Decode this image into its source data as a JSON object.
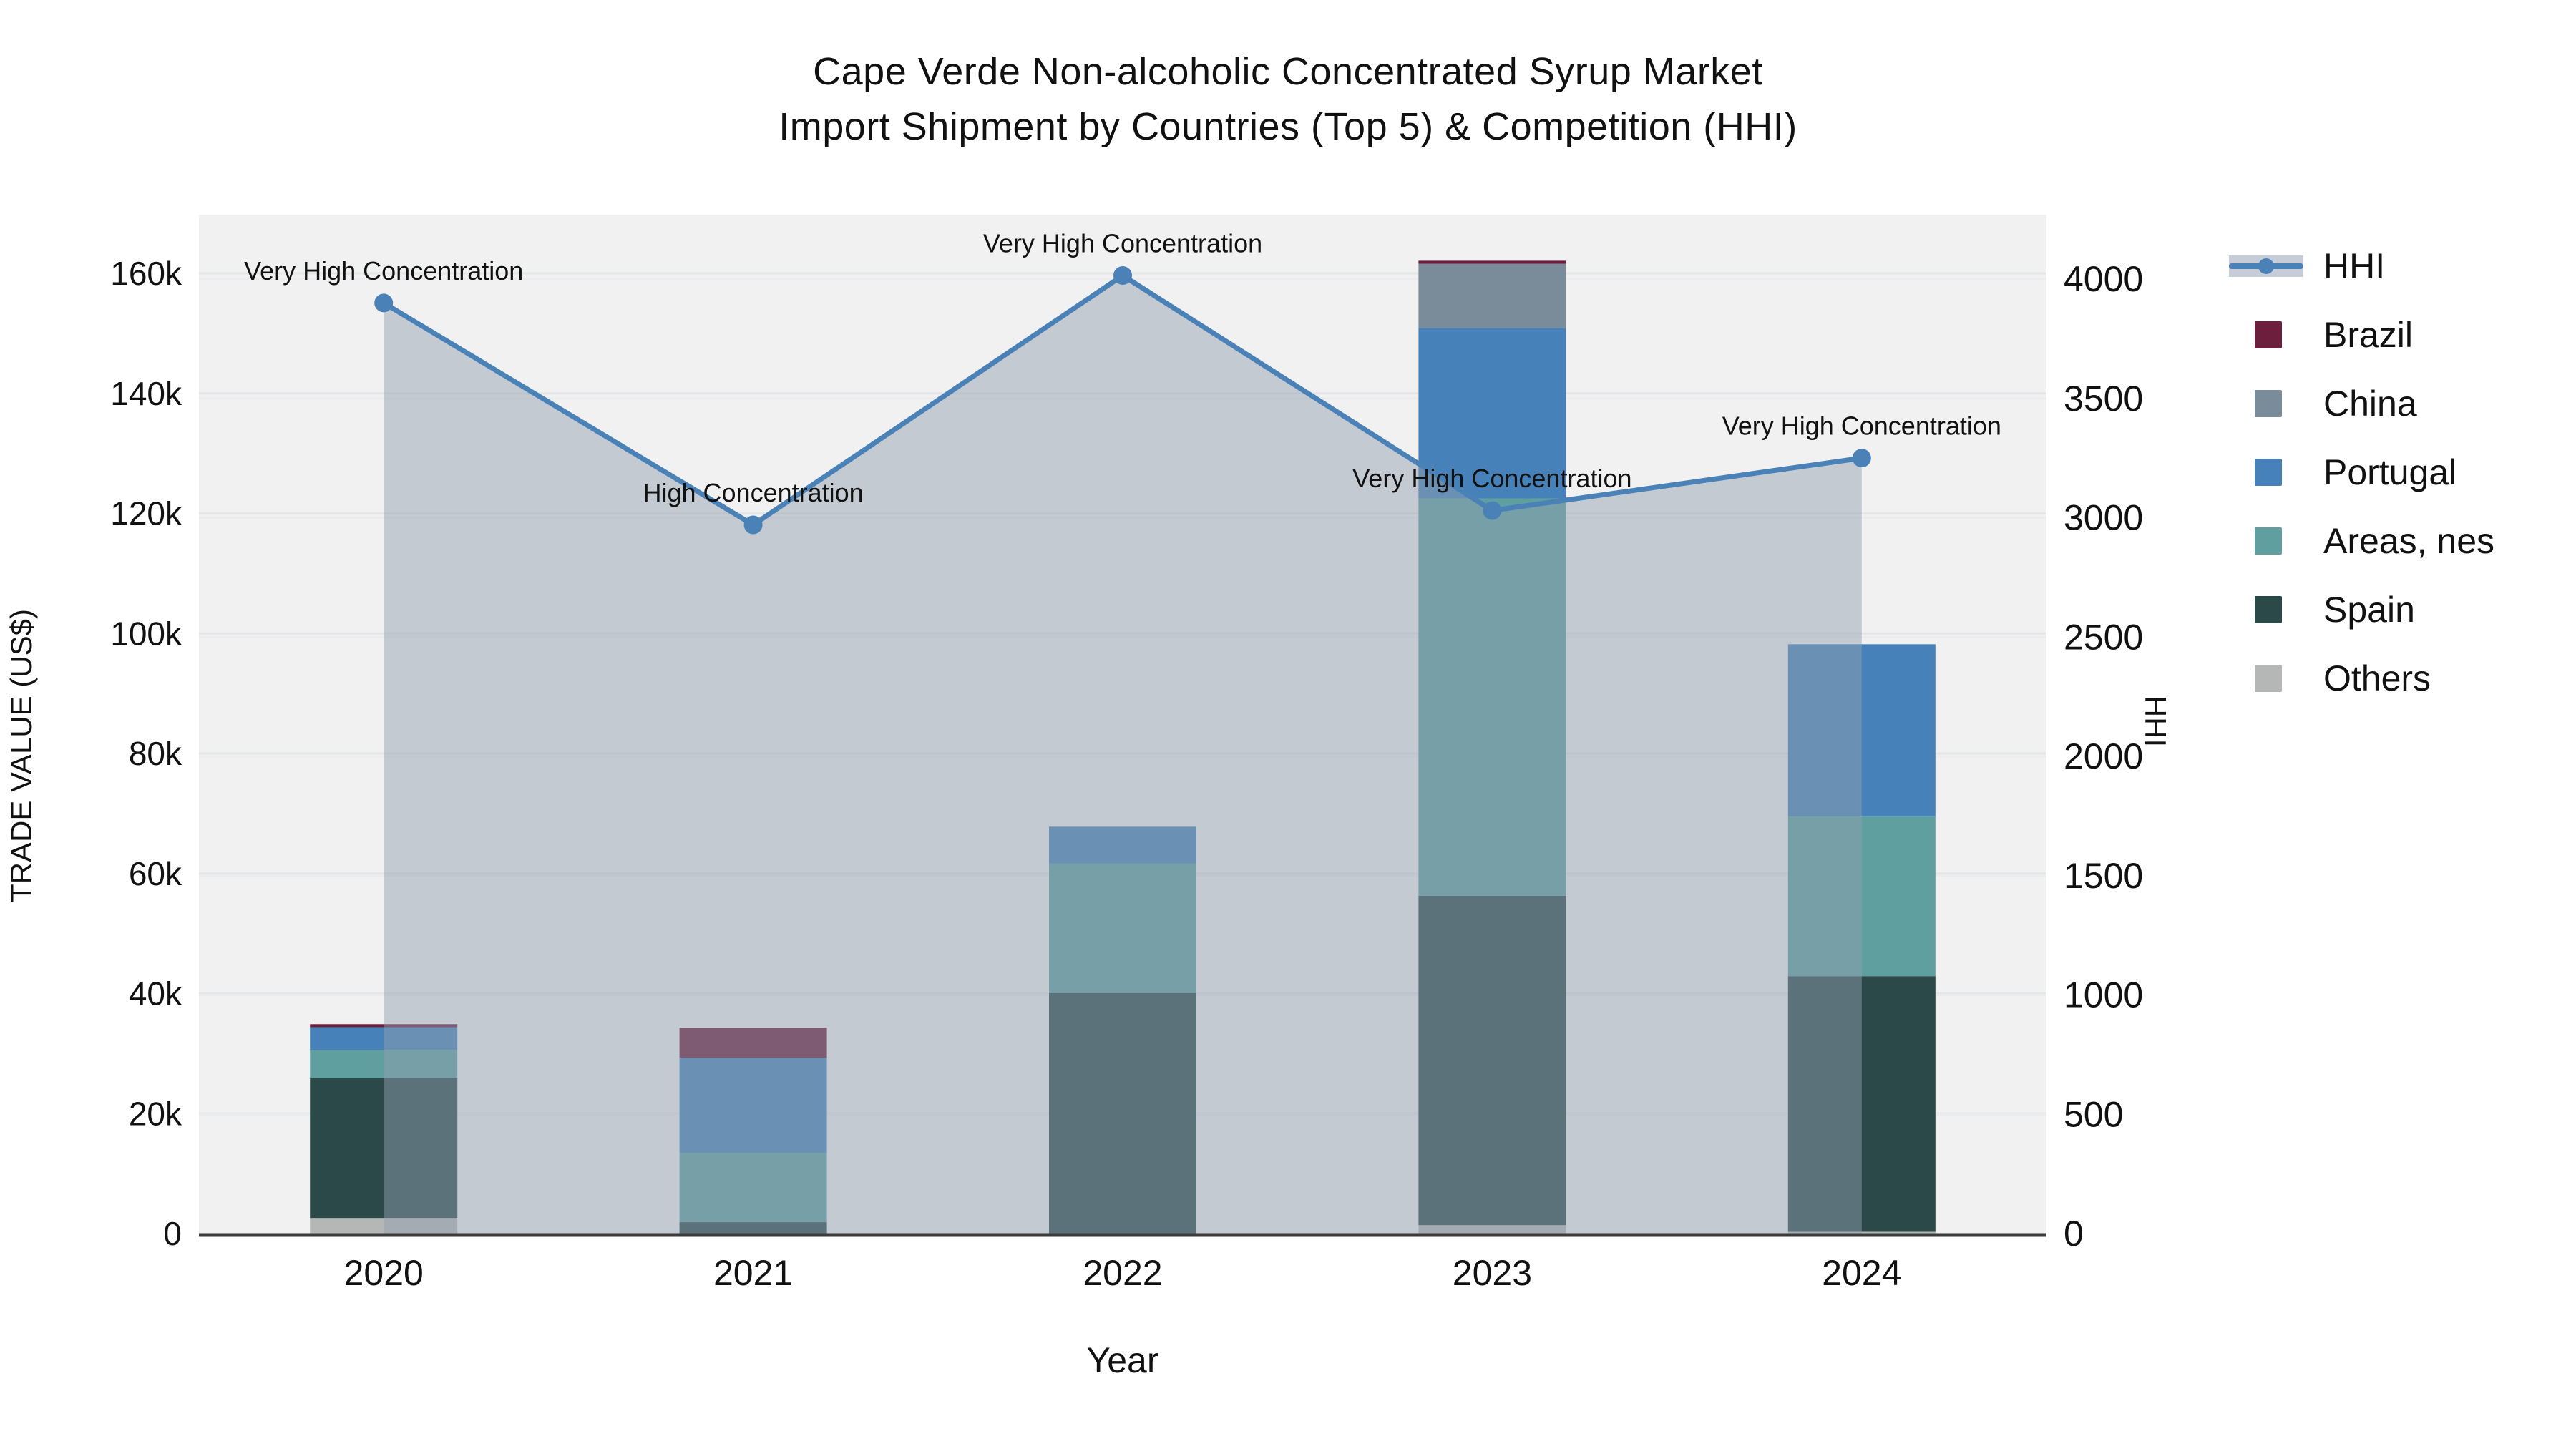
{
  "title": {
    "line1": "Cape Verde Non-alcoholic Concentrated Syrup Market",
    "line2": "Import Shipment by Countries (Top 5) & Competition (HHI)"
  },
  "chart_data": {
    "type": "combo-stacked-bar-line",
    "title_lines": {
      "line1": "Cape Verde Non-alcoholic Concentrated Syrup Market",
      "line2": "Import Shipment by Countries (Top 5) & Competition (HHI)"
    },
    "categories": [
      "2020",
      "2021",
      "2022",
      "2023",
      "2024"
    ],
    "bar_unit": "US$",
    "series": [
      {
        "name": "Others",
        "color": "#b5b7b7",
        "values": [
          2600,
          0,
          0,
          1400,
          300
        ]
      },
      {
        "name": "Spain",
        "color": "#2b4949",
        "values": [
          23300,
          1900,
          40100,
          54900,
          42600
        ]
      },
      {
        "name": "Areas, nes",
        "color": "#5f9fa0",
        "values": [
          4700,
          11500,
          21600,
          66200,
          26600
        ]
      },
      {
        "name": "Portugal",
        "color": "#4682b9",
        "values": [
          3800,
          15900,
          6100,
          28400,
          28700
        ]
      },
      {
        "name": "China",
        "color": "#7a8b9a",
        "values": [
          0,
          0,
          0,
          10700,
          0
        ]
      },
      {
        "name": "Brazil",
        "color": "#6e1e3d",
        "values": [
          500,
          5000,
          0,
          500,
          0
        ]
      }
    ],
    "bar_totals": [
      34900,
      34300,
      67800,
      162100,
      98200
    ],
    "line": {
      "name": "HHI",
      "color": "#4a82b8",
      "area_fill": "rgba(146,158,176,0.48)",
      "values": [
        3900,
        2970,
        4015,
        3030,
        3250
      ],
      "annotations": [
        "Very High Concentration",
        "High Concentration",
        "Very High Concentration",
        "Very High Concentration",
        "Very High Concentration"
      ]
    },
    "xaxis": {
      "title": "Year"
    },
    "yaxis_left": {
      "title": "TRADE VALUE (US$)",
      "range": [
        0,
        160000
      ],
      "tick_values": [
        0,
        20000,
        40000,
        60000,
        80000,
        100000,
        120000,
        140000,
        160000
      ],
      "tick_labels": [
        "0",
        "20k",
        "40k",
        "60k",
        "80k",
        "100k",
        "120k",
        "140k",
        "160k"
      ]
    },
    "yaxis_right": {
      "title": "HHI",
      "range": [
        0,
        4000
      ],
      "tick_values": [
        0,
        500,
        1000,
        1500,
        2000,
        2500,
        3000,
        3500,
        4000
      ],
      "tick_labels": [
        "0",
        "500",
        "1000",
        "1500",
        "2000",
        "2500",
        "3000",
        "3500",
        "4000"
      ]
    },
    "legend": {
      "position": "right",
      "items": [
        {
          "label": "HHI",
          "color": "#4a82b8",
          "swatch": "line",
          "band": "#c6cdd8"
        },
        {
          "label": "Brazil",
          "color": "#6e1e3d",
          "swatch": "square"
        },
        {
          "label": "China",
          "color": "#7a8b9a",
          "swatch": "square"
        },
        {
          "label": "Portugal",
          "color": "#4682b9",
          "swatch": "square"
        },
        {
          "label": "Areas, nes",
          "color": "#5f9fa0",
          "swatch": "square"
        },
        {
          "label": "Spain",
          "color": "#2b4949",
          "swatch": "square"
        },
        {
          "label": "Others",
          "color": "#b5b7b7",
          "swatch": "square"
        }
      ]
    },
    "background": {
      "plot": "#f1f1f2",
      "paper": "#ffffff"
    },
    "gridline_color_left": "#e4e6e7",
    "gridline_color_right": "#ebecee",
    "axis_line_color": "#3c3c3c",
    "grid": true
  }
}
